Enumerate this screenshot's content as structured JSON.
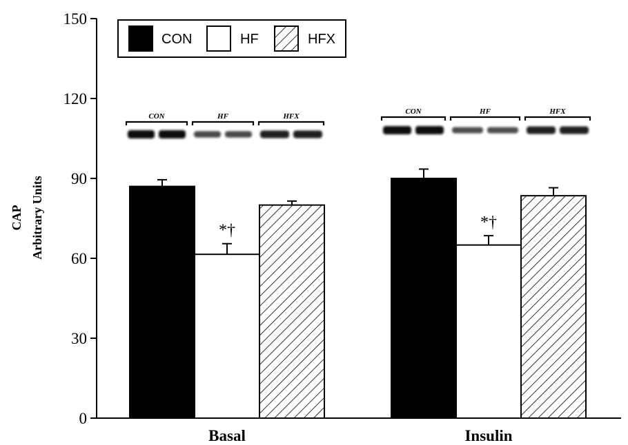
{
  "chart_data": {
    "type": "bar",
    "categories": [
      "Basal",
      "Insulin"
    ],
    "series": [
      {
        "name": "CON",
        "values": [
          87,
          90
        ],
        "errors": [
          2.5,
          3.5
        ],
        "fill": "solid-black"
      },
      {
        "name": "HF",
        "values": [
          61.5,
          65
        ],
        "errors": [
          4,
          3.5
        ],
        "fill": "white"
      },
      {
        "name": "HFX",
        "values": [
          80,
          83.5
        ],
        "errors": [
          1.5,
          3
        ],
        "fill": "diagonal-hatch"
      }
    ],
    "ylabel_lines": [
      "CAP",
      "Arbitrary Units"
    ],
    "ylim": [
      0,
      150
    ],
    "yticks": [
      0,
      30,
      60,
      90,
      120,
      150
    ],
    "annotations": [
      {
        "category": "Basal",
        "series": "HF",
        "text": "*†"
      },
      {
        "category": "Insulin",
        "series": "HF",
        "text": "*†"
      }
    ],
    "blot_labels": [
      "CON",
      "HF",
      "HFX"
    ],
    "legend_placement": "top-left",
    "grid": false
  },
  "colors": {
    "axis": "#000000",
    "con": "#000000",
    "hf": "#ffffff",
    "hatch": "#000000"
  }
}
